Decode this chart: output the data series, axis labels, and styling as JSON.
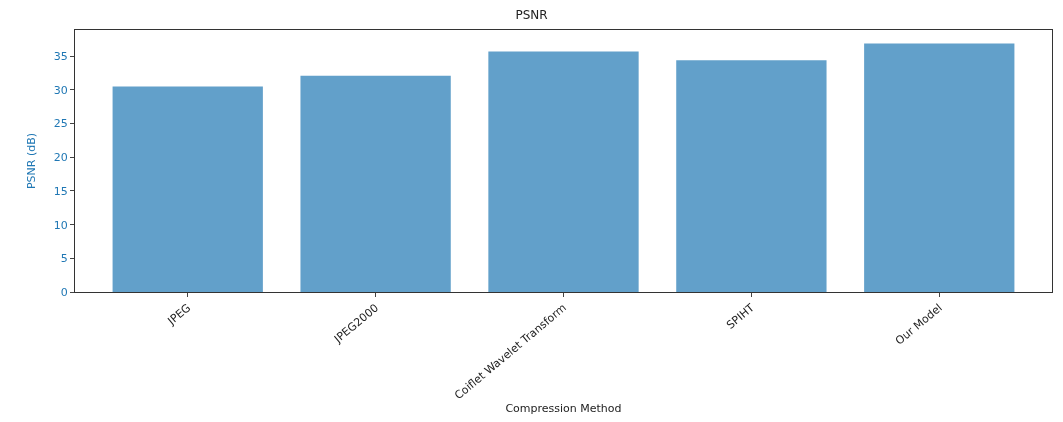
{
  "chart_data": {
    "type": "bar",
    "title": "PSNR",
    "xlabel": "Compression Method",
    "ylabel": "PSNR (dB)",
    "categories": [
      "JPEG",
      "JPEG2000",
      "Coiflet Wavelet Transform",
      "SPIHT",
      "Our Model"
    ],
    "values": [
      30.5,
      32.1,
      35.7,
      34.4,
      36.9
    ],
    "color": "#62a0ca",
    "ylim": [
      0,
      38.9
    ],
    "yticks": [
      0,
      5,
      10,
      15,
      20,
      25,
      30,
      35
    ]
  }
}
